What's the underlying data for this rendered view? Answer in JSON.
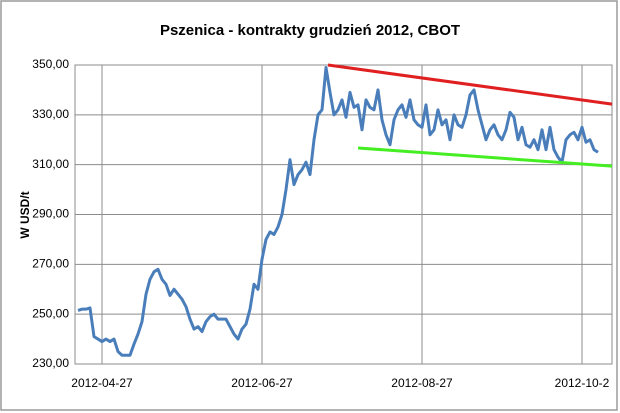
{
  "chart_data": {
    "type": "line",
    "title": "Pszenica - kontrakty grudzień 2012, CBOT",
    "y_label": "W USD/t",
    "categories": [
      null,
      null,
      null,
      null,
      null,
      null,
      "2012-04-27",
      null,
      null,
      null,
      null,
      null,
      null,
      null,
      null,
      null,
      null,
      null,
      null,
      null,
      null,
      null,
      null,
      null,
      null,
      null,
      null,
      null,
      null,
      null,
      null,
      null,
      null,
      null,
      null,
      null,
      null,
      null,
      null,
      null,
      null,
      null,
      null,
      null,
      null,
      null,
      "2012-06-27",
      null,
      null,
      null,
      null,
      null,
      null,
      null,
      null,
      null,
      null,
      null,
      null,
      null,
      null,
      null,
      null,
      null,
      null,
      null,
      null,
      null,
      null,
      null,
      null,
      null,
      null,
      null,
      null,
      null,
      null,
      null,
      null,
      null,
      null,
      null,
      null,
      null,
      null,
      null,
      "2012-08-27",
      null,
      null,
      null,
      null,
      null,
      null,
      null,
      null,
      null,
      null,
      null,
      null,
      null,
      null,
      null,
      null,
      null,
      null,
      null,
      null,
      null,
      null,
      null,
      null,
      null,
      null,
      null,
      null,
      null,
      null,
      null,
      null,
      null,
      null,
      null,
      null,
      null,
      null,
      null,
      "2012-10-2",
      null,
      null,
      null,
      null
    ],
    "series": [
      {
        "color": "#4a7ebb",
        "values": [
          251.5,
          252,
          252,
          252.5,
          241,
          240,
          239,
          240,
          239,
          240,
          235,
          233.5,
          233.5,
          233.5,
          238,
          242,
          247,
          258,
          264,
          267,
          268,
          264,
          262,
          257.5,
          260,
          258,
          256,
          253,
          248,
          244,
          245,
          243,
          247,
          249,
          250,
          248,
          248,
          248,
          245,
          242,
          240,
          244,
          246,
          252,
          262,
          260,
          272,
          280,
          283,
          282,
          285,
          290,
          300,
          312,
          302,
          306,
          308,
          311,
          306,
          320,
          330,
          332,
          349,
          339,
          330,
          332,
          336,
          329,
          339,
          333,
          334,
          324,
          336,
          333,
          332,
          340,
          328,
          322,
          318,
          328,
          332,
          334,
          329,
          336,
          328,
          326,
          325,
          334,
          322,
          324,
          332,
          326,
          328,
          320,
          330,
          326,
          325,
          330,
          338,
          340,
          332,
          326,
          320,
          324,
          326,
          322,
          320,
          324,
          331,
          329,
          320,
          325,
          318,
          317,
          320,
          316,
          324,
          316,
          325,
          316,
          313,
          311,
          320,
          322,
          323,
          320,
          325,
          319,
          320,
          316,
          315
        ]
      }
    ],
    "trendlines": [
      {
        "color": "#e02020",
        "x": [
          62.5,
          133.5
        ],
        "values": [
          350,
          334.3
        ]
      },
      {
        "color": "#44ee22",
        "x": [
          70,
          133.5
        ],
        "values": [
          316.7,
          309.4
        ]
      }
    ],
    "ylim": [
      230,
      350
    ],
    "yticks": [
      {
        "value": 230,
        "label": "230,00"
      },
      {
        "value": 250,
        "label": "250,00"
      },
      {
        "value": 270,
        "label": "270,00"
      },
      {
        "value": 290,
        "label": "290,00"
      },
      {
        "value": 310,
        "label": "310,00"
      },
      {
        "value": 330,
        "label": "330,00"
      },
      {
        "value": 350,
        "label": "350,00"
      }
    ],
    "grid": true
  }
}
